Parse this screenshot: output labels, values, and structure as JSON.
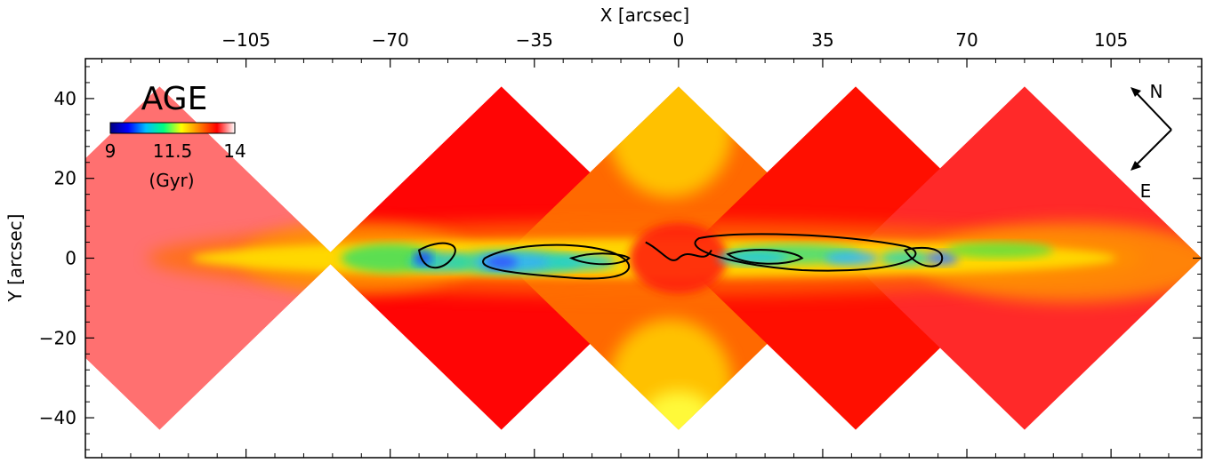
{
  "chart_data": {
    "type": "heatmap",
    "title": "",
    "xlabel": "X [arcsec]",
    "ylabel": "Y [arcsec]",
    "xlim": [
      -144,
      127
    ],
    "ylim": [
      -50,
      50
    ],
    "x_ticks": [
      -105,
      -70,
      -35,
      0,
      35,
      70,
      105
    ],
    "x_tick_labels": [
      "−105",
      "−70",
      "−35",
      "0",
      "35",
      "70",
      "105"
    ],
    "y_ticks": [
      40,
      20,
      0,
      -20,
      -40
    ],
    "y_tick_labels": [
      "40",
      "20",
      "0",
      "−20",
      "−40"
    ],
    "map_quantity": "AGE",
    "colorbar": {
      "title": "AGE",
      "min": 9,
      "max": 14,
      "tick_values": [
        9,
        11.5,
        14
      ],
      "tick_labels": [
        "9",
        "11.5",
        "14"
      ],
      "unit": "(Gyr)",
      "colormap_stops": [
        "#000080",
        "#0000ff",
        "#00bfff",
        "#00ff80",
        "#ffff00",
        "#ff8000",
        "#ff0000",
        "#ffffff"
      ]
    },
    "compass": {
      "north": "N",
      "east": "E"
    },
    "fields": [
      {
        "center_x": -126,
        "center_y": 0,
        "half_width": 43,
        "dominant_age_gyr": 13.6
      },
      {
        "center_x": -43,
        "center_y": 0,
        "half_width": 43,
        "dominant_age_gyr": 13.3
      },
      {
        "center_x": 0,
        "center_y": 0,
        "half_width": 43,
        "dominant_age_gyr": 12.7
      },
      {
        "center_x": 43,
        "center_y": 0,
        "half_width": 43,
        "dominant_age_gyr": 13.2
      },
      {
        "center_x": 84,
        "center_y": 0,
        "half_width": 43,
        "dominant_age_gyr": 13.4
      }
    ],
    "features": [
      {
        "description_age_gyr": 11.0,
        "x_range": [
          -92,
          82
        ],
        "y_range": [
          -4,
          4
        ]
      }
    ],
    "colors": {
      "old": "#ff2a1a",
      "oldest": "#ff5050",
      "intermediate": "#ffcc00",
      "young": "#00ddbb",
      "youngest": "#2244ff"
    }
  }
}
